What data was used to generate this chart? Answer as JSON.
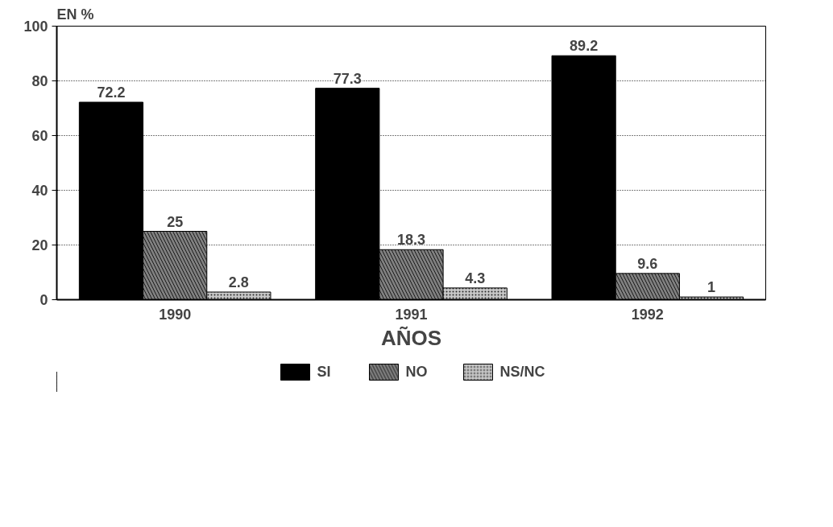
{
  "chart_data": {
    "type": "bar",
    "ylabel": "EN %",
    "xlabel": "AÑOS",
    "categories": [
      "1990",
      "1991",
      "1992"
    ],
    "series": [
      {
        "name": "SI",
        "color": "#000000",
        "values": [
          72.2,
          77.3,
          89.2
        ]
      },
      {
        "name": "NO",
        "color": "#808080",
        "values": [
          25,
          18.3,
          9.6
        ]
      },
      {
        "name": "NS/NC",
        "color": "#c8c8c8",
        "values": [
          2.8,
          4.3,
          1
        ]
      }
    ],
    "ylim": [
      0,
      100
    ],
    "yticks": [
      0,
      20,
      40,
      60,
      80,
      100
    ],
    "grid": "y",
    "legend": "bottom",
    "data_labels": true
  }
}
